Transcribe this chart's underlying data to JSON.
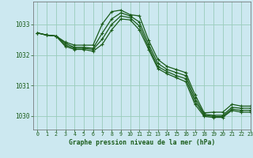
{
  "title": "Graphe pression niveau de la mer (hPa)",
  "background_color": "#cce8f0",
  "grid_color": "#99ccbb",
  "line_color": "#1a5c1a",
  "tick_color": "#1a5c1a",
  "xlim": [
    -0.5,
    23
  ],
  "ylim": [
    1029.55,
    1033.75
  ],
  "yticks": [
    1030,
    1031,
    1032,
    1033
  ],
  "xticks": [
    0,
    1,
    2,
    3,
    4,
    5,
    6,
    7,
    8,
    9,
    10,
    11,
    12,
    13,
    14,
    15,
    16,
    17,
    18,
    19,
    20,
    21,
    22,
    23
  ],
  "series": [
    [
      1032.72,
      1032.65,
      1032.62,
      1032.42,
      1032.32,
      1032.32,
      1032.32,
      1033.02,
      1033.42,
      1033.47,
      1033.32,
      1033.28,
      1032.48,
      1031.85,
      1031.62,
      1031.52,
      1031.42,
      1030.7,
      1030.1,
      1030.12,
      1030.12,
      1030.38,
      1030.32,
      1030.32
    ],
    [
      1032.72,
      1032.65,
      1032.62,
      1032.38,
      1032.25,
      1032.25,
      1032.22,
      1032.72,
      1033.18,
      1033.38,
      1033.28,
      1033.08,
      1032.35,
      1031.72,
      1031.52,
      1031.42,
      1031.32,
      1030.58,
      1030.05,
      1030.02,
      1030.02,
      1030.28,
      1030.25,
      1030.25
    ],
    [
      1032.72,
      1032.65,
      1032.62,
      1032.32,
      1032.22,
      1032.22,
      1032.18,
      1032.52,
      1033.0,
      1033.28,
      1033.22,
      1032.95,
      1032.25,
      1031.62,
      1031.45,
      1031.32,
      1031.22,
      1030.48,
      1030.02,
      1029.98,
      1029.98,
      1030.22,
      1030.18,
      1030.18
    ],
    [
      1032.72,
      1032.65,
      1032.62,
      1032.28,
      1032.18,
      1032.18,
      1032.12,
      1032.35,
      1032.82,
      1033.18,
      1033.15,
      1032.82,
      1032.18,
      1031.55,
      1031.38,
      1031.25,
      1031.12,
      1030.38,
      1029.98,
      1029.95,
      1029.95,
      1030.18,
      1030.12,
      1030.12
    ]
  ]
}
